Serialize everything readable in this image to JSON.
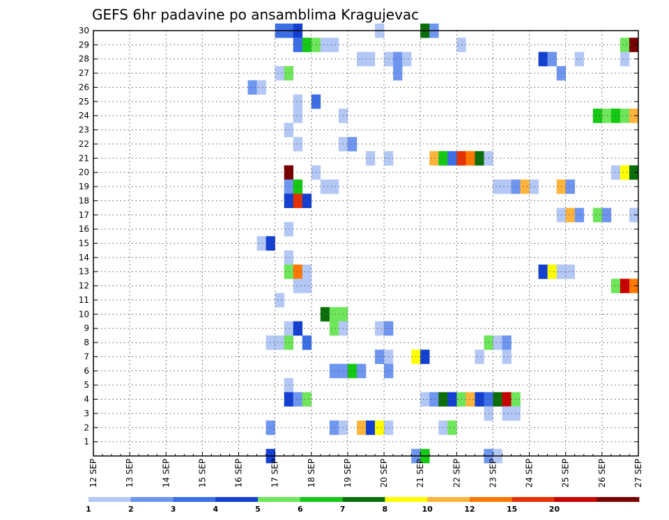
{
  "chart_data": {
    "type": "heatmap",
    "title": "GEFS 6hr padavine po ansamblima Kragujevac",
    "x_tick_labels": [
      "12 SEP",
      "13 SEP",
      "14 SEP",
      "15 SEP",
      "16 SEP",
      "17 SEP",
      "18 SEP",
      "19 SEP",
      "20 SEP",
      "21 SEP",
      "22 SEP",
      "23 SEP",
      "24 SEP",
      "25 SEP",
      "26 SEP",
      "27 SEP"
    ],
    "x_unit": "6-hour steps after 12 SEP 00z",
    "x_range": [
      0,
      60
    ],
    "y_tick_labels": [
      "1",
      "2",
      "3",
      "4",
      "5",
      "6",
      "7",
      "8",
      "9",
      "10",
      "11",
      "12",
      "13",
      "14",
      "15",
      "16",
      "17",
      "18",
      "19",
      "20",
      "21",
      "22",
      "23",
      "24",
      "25",
      "26",
      "27",
      "28",
      "29",
      "30"
    ],
    "y_range": [
      0,
      30
    ],
    "grid": true,
    "colorbar": {
      "position": "bottom",
      "colors": [
        "#b4c8f5",
        "#6e96f0",
        "#3c6ee6",
        "#1440d2",
        "#6ee65a",
        "#14c814",
        "#0a6e0a",
        "#ffff00",
        "#ffb43c",
        "#ff7800",
        "#e63200",
        "#c80000",
        "#780000"
      ],
      "labels": [
        "1",
        "2",
        "3",
        "4",
        "5",
        "6",
        "7",
        "8",
        "10",
        "12",
        "15",
        "20"
      ]
    },
    "cells_note": "each cell: [member, step, color class 0..12]",
    "cells": [
      [
        30,
        21,
        2
      ],
      [
        30,
        22,
        2
      ],
      [
        30,
        23,
        3
      ],
      [
        30,
        32,
        0
      ],
      [
        30,
        37,
        6
      ],
      [
        30,
        38,
        1
      ],
      [
        29,
        23,
        2
      ],
      [
        29,
        24,
        5
      ],
      [
        29,
        25,
        4
      ],
      [
        29,
        26,
        0
      ],
      [
        29,
        27,
        0
      ],
      [
        29,
        41,
        0
      ],
      [
        29,
        59,
        4
      ],
      [
        29,
        60,
        12
      ],
      [
        28,
        30,
        0
      ],
      [
        28,
        31,
        0
      ],
      [
        28,
        33,
        0
      ],
      [
        28,
        34,
        1
      ],
      [
        28,
        35,
        0
      ],
      [
        28,
        50,
        3
      ],
      [
        28,
        51,
        1
      ],
      [
        28,
        54,
        0
      ],
      [
        28,
        59,
        0
      ],
      [
        27,
        21,
        0
      ],
      [
        27,
        22,
        4
      ],
      [
        27,
        34,
        1
      ],
      [
        27,
        52,
        1
      ],
      [
        26,
        18,
        1
      ],
      [
        26,
        19,
        0
      ],
      [
        25,
        23,
        0
      ],
      [
        25,
        25,
        2
      ],
      [
        24,
        23,
        0
      ],
      [
        24,
        28,
        0
      ],
      [
        24,
        56,
        5
      ],
      [
        24,
        57,
        4
      ],
      [
        24,
        58,
        5
      ],
      [
        24,
        59,
        4
      ],
      [
        24,
        60,
        8
      ],
      [
        23,
        22,
        0
      ],
      [
        22,
        23,
        0
      ],
      [
        22,
        28,
        0
      ],
      [
        22,
        29,
        1
      ],
      [
        21,
        31,
        0
      ],
      [
        21,
        33,
        0
      ],
      [
        21,
        38,
        8
      ],
      [
        21,
        39,
        5
      ],
      [
        21,
        40,
        2
      ],
      [
        21,
        41,
        10
      ],
      [
        21,
        42,
        9
      ],
      [
        21,
        43,
        6
      ],
      [
        21,
        44,
        0
      ],
      [
        20,
        22,
        12
      ],
      [
        20,
        25,
        0
      ],
      [
        20,
        58,
        0
      ],
      [
        20,
        59,
        7
      ],
      [
        20,
        60,
        6
      ],
      [
        19,
        22,
        1
      ],
      [
        19,
        23,
        5
      ],
      [
        19,
        26,
        0
      ],
      [
        19,
        27,
        0
      ],
      [
        19,
        45,
        0
      ],
      [
        19,
        46,
        0
      ],
      [
        19,
        47,
        1
      ],
      [
        19,
        48,
        8
      ],
      [
        19,
        49,
        0
      ],
      [
        19,
        52,
        8
      ],
      [
        19,
        53,
        1
      ],
      [
        18,
        22,
        3
      ],
      [
        18,
        23,
        10
      ],
      [
        18,
        24,
        3
      ],
      [
        17,
        52,
        0
      ],
      [
        17,
        53,
        8
      ],
      [
        17,
        54,
        1
      ],
      [
        17,
        56,
        4
      ],
      [
        17,
        57,
        1
      ],
      [
        17,
        60,
        0
      ],
      [
        16,
        22,
        0
      ],
      [
        15,
        19,
        0
      ],
      [
        15,
        20,
        3
      ],
      [
        14,
        22,
        0
      ],
      [
        13,
        22,
        4
      ],
      [
        13,
        23,
        9
      ],
      [
        13,
        24,
        0
      ],
      [
        13,
        50,
        3
      ],
      [
        13,
        51,
        7
      ],
      [
        13,
        52,
        0
      ],
      [
        13,
        53,
        0
      ],
      [
        12,
        23,
        0
      ],
      [
        12,
        24,
        0
      ],
      [
        12,
        58,
        4
      ],
      [
        12,
        59,
        11
      ],
      [
        12,
        60,
        9
      ],
      [
        11,
        21,
        0
      ],
      [
        10,
        26,
        6
      ],
      [
        10,
        27,
        4
      ],
      [
        10,
        28,
        4
      ],
      [
        9,
        22,
        0
      ],
      [
        9,
        23,
        3
      ],
      [
        9,
        27,
        4
      ],
      [
        9,
        28,
        0
      ],
      [
        9,
        32,
        0
      ],
      [
        9,
        33,
        1
      ],
      [
        8,
        20,
        0
      ],
      [
        8,
        21,
        0
      ],
      [
        8,
        22,
        4
      ],
      [
        8,
        24,
        2
      ],
      [
        8,
        44,
        4
      ],
      [
        8,
        45,
        0
      ],
      [
        8,
        46,
        1
      ],
      [
        7,
        32,
        1
      ],
      [
        7,
        33,
        0
      ],
      [
        7,
        36,
        7
      ],
      [
        7,
        37,
        3
      ],
      [
        7,
        43,
        0
      ],
      [
        7,
        46,
        0
      ],
      [
        6,
        27,
        1
      ],
      [
        6,
        28,
        1
      ],
      [
        6,
        29,
        5
      ],
      [
        6,
        30,
        1
      ],
      [
        6,
        33,
        1
      ],
      [
        5,
        22,
        0
      ],
      [
        4,
        22,
        3
      ],
      [
        4,
        23,
        1
      ],
      [
        4,
        24,
        4
      ],
      [
        4,
        37,
        0
      ],
      [
        4,
        38,
        1
      ],
      [
        4,
        39,
        6
      ],
      [
        4,
        40,
        3
      ],
      [
        4,
        41,
        4
      ],
      [
        4,
        42,
        8
      ],
      [
        4,
        43,
        3
      ],
      [
        4,
        44,
        2
      ],
      [
        4,
        45,
        6
      ],
      [
        4,
        46,
        11
      ],
      [
        4,
        47,
        4
      ],
      [
        3,
        44,
        0
      ],
      [
        3,
        46,
        0
      ],
      [
        3,
        47,
        0
      ],
      [
        2,
        20,
        1
      ],
      [
        2,
        27,
        1
      ],
      [
        2,
        28,
        0
      ],
      [
        2,
        30,
        8
      ],
      [
        2,
        31,
        3
      ],
      [
        2,
        32,
        7
      ],
      [
        2,
        33,
        0
      ],
      [
        2,
        39,
        0
      ],
      [
        2,
        40,
        4
      ],
      [
        0,
        20,
        3
      ],
      [
        0,
        36,
        1
      ],
      [
        0,
        37,
        5
      ],
      [
        0,
        44,
        1
      ],
      [
        0,
        45,
        0
      ]
    ]
  }
}
